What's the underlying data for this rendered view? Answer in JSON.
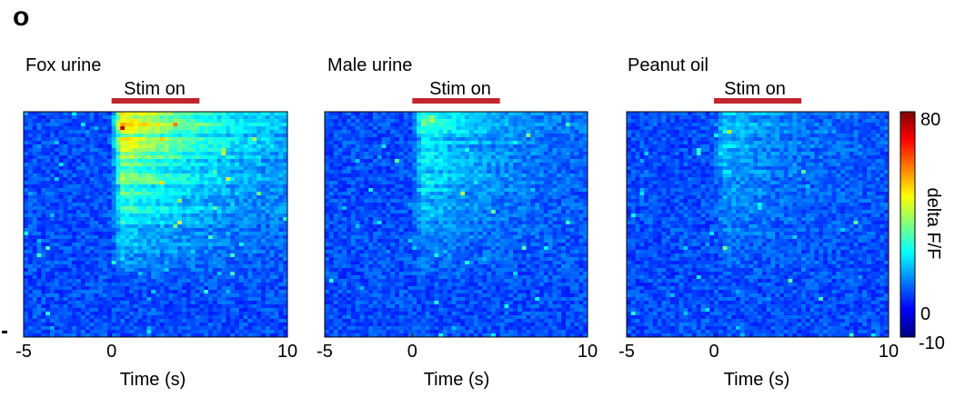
{
  "panel_label": "o",
  "colors": {
    "stim_bar": "#c0272d",
    "colormap": [
      "#00007f",
      "#0000ff",
      "#007fff",
      "#00ffff",
      "#7fff7f",
      "#ffff00",
      "#ff7f00",
      "#ff0000",
      "#7f0000"
    ]
  },
  "colorbar": {
    "label": "delta F/F",
    "ticks": [
      "80",
      "0",
      "-10"
    ],
    "range": [
      -10,
      80
    ]
  },
  "chart_data": [
    {
      "type": "heatmap",
      "title": "Fox urine",
      "stim_label": "Stim on",
      "stim_window": [
        0,
        5
      ],
      "xlabel": "Time (s)",
      "xlim": [
        -5,
        10
      ],
      "xticks": [
        "-5",
        "0",
        "10"
      ],
      "xtick_values": [
        -5,
        0,
        10
      ],
      "response_strength": 0.85,
      "pre_stim_level": "low",
      "post_stim_peak": "high"
    },
    {
      "type": "heatmap",
      "title": "Male urine",
      "stim_label": "Stim on",
      "stim_window": [
        0,
        5
      ],
      "xlabel": "Time (s)",
      "xlim": [
        -5,
        10
      ],
      "xticks": [
        "-5",
        "0",
        "10"
      ],
      "xtick_values": [
        -5,
        0,
        10
      ],
      "response_strength": 0.45,
      "pre_stim_level": "low",
      "post_stim_peak": "moderate"
    },
    {
      "type": "heatmap",
      "title": "Peanut oil",
      "stim_label": "Stim on",
      "stim_window": [
        0,
        5
      ],
      "xlabel": "Time (s)",
      "xlim": [
        -5,
        10
      ],
      "xticks": [
        "-5",
        "0",
        "10"
      ],
      "xtick_values": [
        -5,
        0,
        10
      ],
      "response_strength": 0.3,
      "pre_stim_level": "low",
      "post_stim_peak": "low"
    }
  ]
}
